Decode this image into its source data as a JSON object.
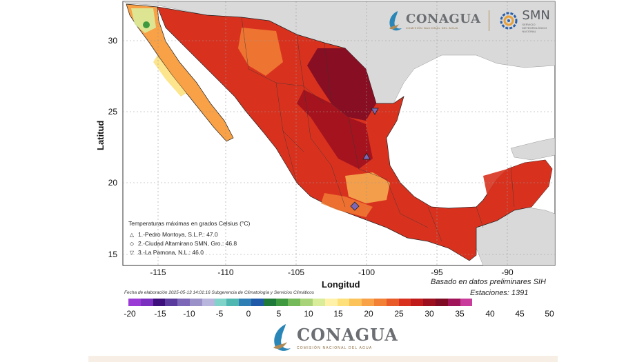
{
  "logos": {
    "conagua_word": "CONAGUA",
    "conagua_sub": "COMISIÓN NACIONAL DEL AGUA",
    "smn_word": "SMN",
    "smn_sub_1": "SERVICIO",
    "smn_sub_2": "METEOROLÓGICO",
    "smn_sub_3": "NACIONAL"
  },
  "axes": {
    "xlabel": "Longitud",
    "ylabel": "Latitud",
    "x_ticks": [
      "-115",
      "-110",
      "-105",
      "-100",
      "-95",
      "-90"
    ],
    "y_ticks": [
      "30",
      "25",
      "20",
      "15"
    ]
  },
  "legend": {
    "title": "Temperaturas máximas en grados Celsius (°C)",
    "entries": [
      {
        "symbol": "△",
        "text": "1.-Pedro Montoya, S.L.P.: 47.0"
      },
      {
        "symbol": "◇",
        "text": "2.-Ciudad Altamirano SMN, Gro.: 46.8"
      },
      {
        "symbol": "▽",
        "text": "3.-La Pamona, N.L.: 46.0"
      }
    ]
  },
  "notes": {
    "basis": "Basado en datos preliminares SIH",
    "stations": "Estaciones:  1391",
    "credit": "Fecha de elaboración 2025-05-13 14:01:16 Subgerencia de Climatología y Servicios Climáticos"
  },
  "colorbar": {
    "labels": [
      "-20",
      "-15",
      "-10",
      "-5",
      "0",
      "5",
      "10",
      "15",
      "20",
      "25",
      "30",
      "35",
      "40",
      "45",
      "50"
    ],
    "colors": [
      "#9a3bd6",
      "#7a2fbf",
      "#3d0f7a",
      "#5b3a9e",
      "#7d68b8",
      "#9b91c9",
      "#b9b6dd",
      "#7fd3c9",
      "#4fb7b0",
      "#2f7fb5",
      "#1e5aa8",
      "#1f7a3a",
      "#3f9a3f",
      "#74b95a",
      "#a8d378",
      "#d9ec9a",
      "#fff2a8",
      "#fde07a",
      "#fbc35a",
      "#f8a146",
      "#f28035",
      "#e85a28",
      "#d8321f",
      "#c01a1a",
      "#9c0f1e",
      "#7f0a24",
      "#a0155a",
      "#c93c9b"
    ]
  },
  "stations_markers": [
    {
      "symbol": "triangle-up",
      "lon": -100.4,
      "lat": 21.8
    },
    {
      "symbol": "diamond",
      "lon": -100.6,
      "lat": 18.4
    },
    {
      "symbol": "triangle-down",
      "lon": -99.6,
      "lat": 25.0
    }
  ]
}
